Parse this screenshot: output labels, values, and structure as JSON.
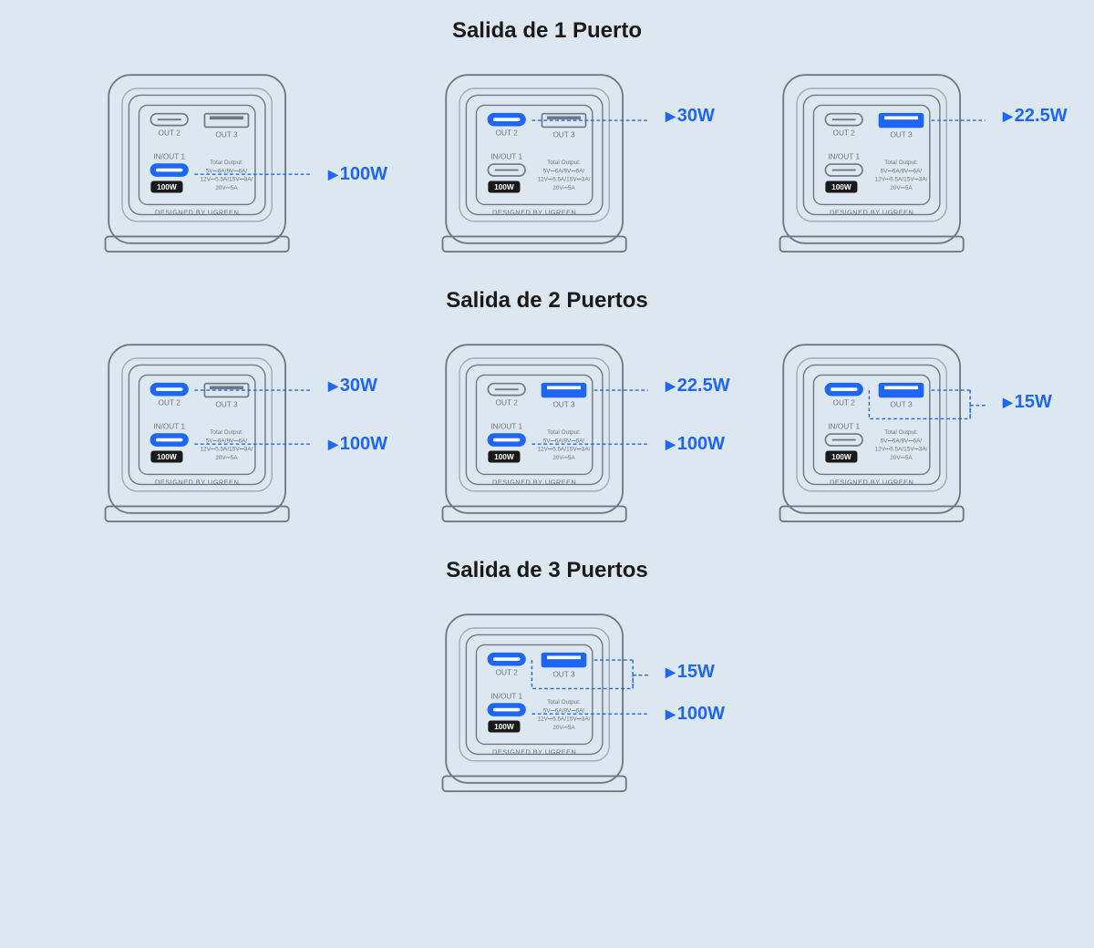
{
  "colors": {
    "bg": "#dce7f0",
    "outline": "#6b7886",
    "outline_light": "#a0aab5",
    "active": "#1e66f5",
    "watt_text": "#1e66f5",
    "badge_bg": "#1a1a1a",
    "badge_text": "#ffffff",
    "title_text": "#1a1a1a",
    "small_text": "#6b7886"
  },
  "typography": {
    "title_fontsize": 24,
    "watt_fontsize": 20,
    "port_label_fontsize": 9,
    "spec_fontsize": 7,
    "footer_fontsize": 8
  },
  "charger_text": {
    "out2": "OUT 2",
    "out3": "OUT 3",
    "inout1": "IN/OUT 1",
    "badge": "100W",
    "spec_title": "Total Output:",
    "spec_line1": "5V⎓6A/9V⎓6A/",
    "spec_line2": "12V⎓5.5A/15V⎓3A/",
    "spec_line3": "20V⎓5A",
    "footer": "DESIGNED BY UGREEN"
  },
  "sections": [
    {
      "title": "Salida de 1 Puerto",
      "units": [
        {
          "active": {
            "out1": true,
            "out2": false,
            "out3": false
          },
          "outputs": [
            {
              "port": "out1",
              "watt": "100W"
            }
          ]
        },
        {
          "active": {
            "out1": false,
            "out2": true,
            "out3": false
          },
          "outputs": [
            {
              "port": "out2",
              "watt": "30W"
            }
          ]
        },
        {
          "active": {
            "out1": false,
            "out2": false,
            "out3": true
          },
          "outputs": [
            {
              "port": "out3",
              "watt": "22.5W"
            }
          ]
        }
      ]
    },
    {
      "title": "Salida de 2 Puertos",
      "units": [
        {
          "active": {
            "out1": true,
            "out2": true,
            "out3": false
          },
          "outputs": [
            {
              "port": "out2",
              "watt": "30W"
            },
            {
              "port": "out1",
              "watt": "100W"
            }
          ]
        },
        {
          "active": {
            "out1": true,
            "out2": false,
            "out3": true
          },
          "outputs": [
            {
              "port": "out3",
              "watt": "22.5W"
            },
            {
              "port": "out1",
              "watt": "100W"
            }
          ]
        },
        {
          "active": {
            "out1": false,
            "out2": true,
            "out3": true
          },
          "outputs": [
            {
              "port": "combo23",
              "watt": "15W"
            }
          ]
        }
      ]
    },
    {
      "title": "Salida de 3 Puertos",
      "units": [
        {
          "active": {
            "out1": true,
            "out2": true,
            "out3": true
          },
          "outputs": [
            {
              "port": "combo23",
              "watt": "15W"
            },
            {
              "port": "out1",
              "watt": "100W"
            }
          ]
        }
      ]
    }
  ],
  "port_y": {
    "out2": 62,
    "out3": 62,
    "out1": 126,
    "combo23": 80
  },
  "port_edge_x": {
    "out2": 112,
    "out3": 186,
    "out1": 112
  }
}
